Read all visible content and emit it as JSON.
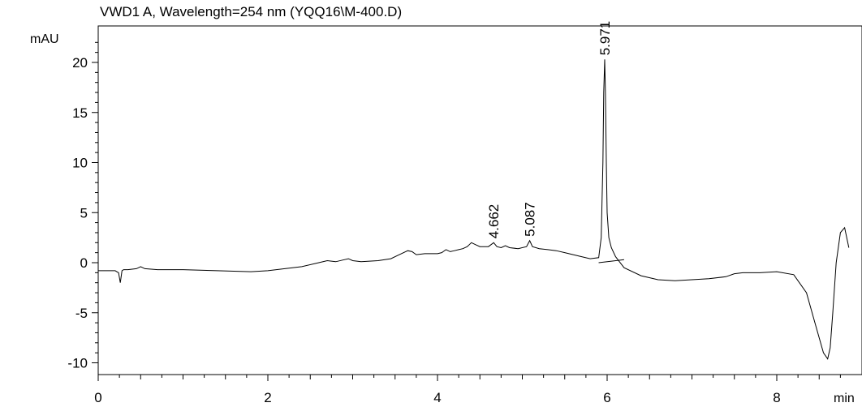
{
  "chart_data": {
    "type": "line",
    "title": "VWD1 A, Wavelength=254 nm (YQQ16\\M-400.D)",
    "ylabel": "mAU",
    "xlabel": "min",
    "xlim": [
      0,
      8.85
    ],
    "ylim": [
      -11,
      23
    ],
    "x_ticks": [
      0,
      2,
      4,
      6,
      8
    ],
    "x_tick_labels": [
      "0",
      "2",
      "4",
      "6",
      "8"
    ],
    "y_ticks": [
      -10,
      -5,
      0,
      5,
      10,
      15,
      20
    ],
    "y_tick_labels": [
      "-10",
      "-5",
      "0",
      "5",
      "10",
      "15",
      "20"
    ],
    "grid": false,
    "series": [
      {
        "x": [
          0,
          0.2,
          0.24,
          0.26,
          0.28,
          0.3,
          0.35,
          0.45,
          0.5,
          0.55,
          0.7,
          1.0,
          1.4,
          1.8,
          2.0,
          2.2,
          2.4,
          2.6,
          2.7,
          2.8,
          2.9,
          2.95,
          3.0,
          3.1,
          3.3,
          3.45,
          3.55,
          3.65,
          3.7,
          3.75,
          3.85,
          4.0,
          4.05,
          4.1,
          4.15,
          4.2,
          4.25,
          4.3,
          4.35,
          4.4,
          4.45,
          4.5,
          4.6,
          4.662,
          4.7,
          4.75,
          4.8,
          4.85,
          4.95,
          5.05,
          5.087,
          5.12,
          5.2,
          5.3,
          5.4,
          5.5,
          5.6,
          5.7,
          5.8,
          5.9,
          5.93,
          5.95,
          5.96,
          5.971,
          5.98,
          5.99,
          6.0,
          6.02,
          6.05,
          6.1,
          6.2,
          6.4,
          6.6,
          6.8,
          7.0,
          7.2,
          7.4,
          7.5,
          7.6,
          7.8,
          8.0,
          8.2,
          8.35,
          8.45,
          8.55,
          8.6,
          8.63,
          8.66,
          8.7,
          8.75,
          8.8,
          8.85
        ],
        "y": [
          -0.8,
          -0.8,
          -1.0,
          -2.0,
          -0.8,
          -0.7,
          -0.7,
          -0.6,
          -0.4,
          -0.6,
          -0.7,
          -0.7,
          -0.8,
          -0.9,
          -0.8,
          -0.6,
          -0.4,
          0.0,
          0.2,
          0.1,
          0.3,
          0.4,
          0.2,
          0.1,
          0.2,
          0.4,
          0.8,
          1.2,
          1.1,
          0.8,
          0.9,
          0.9,
          1.0,
          1.3,
          1.1,
          1.2,
          1.3,
          1.4,
          1.6,
          2.0,
          1.8,
          1.6,
          1.6,
          2.0,
          1.6,
          1.5,
          1.7,
          1.5,
          1.4,
          1.6,
          2.2,
          1.6,
          1.4,
          1.3,
          1.2,
          1.0,
          0.8,
          0.6,
          0.4,
          0.5,
          2.5,
          10.0,
          17.0,
          20.3,
          17.0,
          10.0,
          5.0,
          2.5,
          1.5,
          0.6,
          -0.5,
          -1.3,
          -1.7,
          -1.8,
          -1.7,
          -1.6,
          -1.4,
          -1.1,
          -1.0,
          -1.0,
          -0.9,
          -1.2,
          -3.0,
          -6.0,
          -9.0,
          -9.6,
          -8.5,
          -5.0,
          0.0,
          3.0,
          3.5,
          1.5
        ]
      }
    ],
    "peak_labels": [
      {
        "x": 4.662,
        "y": 2.0,
        "label": "4.662"
      },
      {
        "x": 5.087,
        "y": 2.2,
        "label": "5.087"
      },
      {
        "x": 5.971,
        "y": 20.3,
        "label": "5.971"
      }
    ],
    "baseline_segments": [
      {
        "x1": 5.9,
        "y1": 0.0,
        "x2": 6.2,
        "y2": 0.3
      }
    ]
  }
}
